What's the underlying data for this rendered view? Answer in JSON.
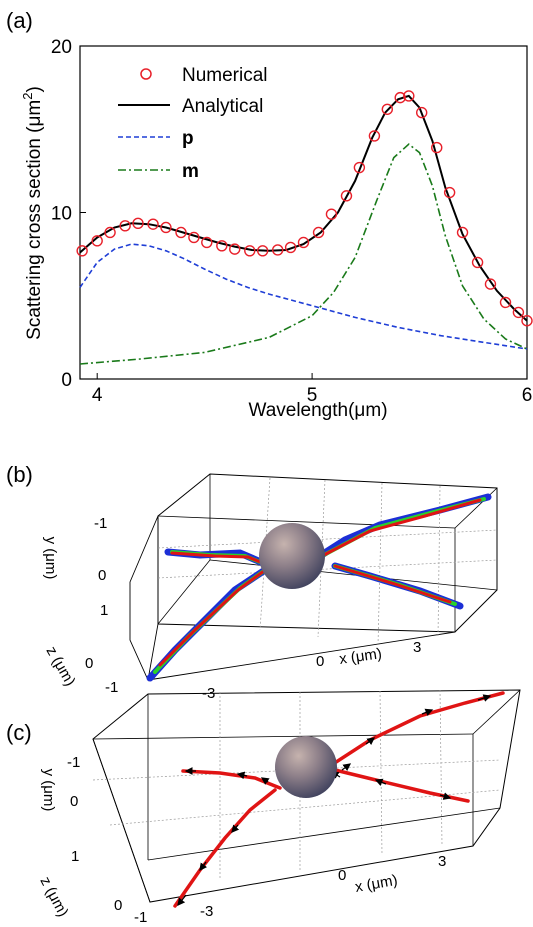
{
  "panels": {
    "a": "(a)",
    "b": "(b)",
    "c": "(c)"
  },
  "chart_data": [
    {
      "type": "line",
      "xlabel": "Wavelength(μm)",
      "ylabel_main": "Scattering cross section (μm",
      "ylabel_sup": "2",
      "ylabel_end": ")",
      "xlim": [
        3.92,
        6.0
      ],
      "ylim": [
        0,
        20
      ],
      "xticks": [
        4,
        5,
        6
      ],
      "yticks": [
        0,
        10,
        20
      ],
      "legend_position": "top-left",
      "series": [
        {
          "name": "Numerical",
          "style": "markers",
          "color": "#e8202a",
          "x": [
            3.93,
            4.0,
            4.06,
            4.13,
            4.19,
            4.26,
            4.32,
            4.39,
            4.45,
            4.51,
            4.58,
            4.64,
            4.71,
            4.77,
            4.84,
            4.9,
            4.96,
            5.03,
            5.09,
            5.16,
            5.22,
            5.29,
            5.35,
            5.41,
            5.45,
            5.51,
            5.58,
            5.64,
            5.7,
            5.77,
            5.83,
            5.9,
            5.96,
            6.0
          ],
          "y": [
            7.7,
            8.3,
            8.8,
            9.2,
            9.35,
            9.3,
            9.1,
            8.8,
            8.5,
            8.2,
            8.0,
            7.8,
            7.7,
            7.7,
            7.75,
            7.9,
            8.2,
            8.8,
            9.9,
            11.0,
            12.7,
            14.6,
            16.2,
            16.9,
            17.0,
            16.0,
            13.9,
            11.2,
            8.8,
            7.0,
            5.7,
            4.6,
            4.0,
            3.5
          ]
        },
        {
          "name": "Analytical",
          "style": "solid",
          "color": "#000000",
          "x": [
            3.92,
            4.0,
            4.08,
            4.16,
            4.24,
            4.32,
            4.4,
            4.48,
            4.56,
            4.64,
            4.72,
            4.8,
            4.88,
            4.96,
            5.04,
            5.12,
            5.2,
            5.28,
            5.34,
            5.4,
            5.45,
            5.5,
            5.56,
            5.62,
            5.7,
            5.78,
            5.86,
            5.94,
            6.0
          ],
          "y": [
            7.6,
            8.5,
            9.1,
            9.35,
            9.3,
            9.1,
            8.8,
            8.5,
            8.2,
            7.95,
            7.75,
            7.7,
            7.75,
            8.1,
            8.8,
            10.0,
            11.9,
            14.5,
            16.0,
            16.8,
            17.0,
            16.3,
            14.3,
            11.5,
            8.7,
            6.8,
            5.3,
            4.2,
            3.5
          ]
        },
        {
          "name": "p",
          "style": "dashed",
          "color": "#1f3ed6",
          "x": [
            3.92,
            4.0,
            4.08,
            4.16,
            4.24,
            4.32,
            4.4,
            4.5,
            4.6,
            4.7,
            4.8,
            4.9,
            5.0,
            5.2,
            5.4,
            5.6,
            5.8,
            6.0
          ],
          "y": [
            5.5,
            7.0,
            7.8,
            8.1,
            8.0,
            7.7,
            7.25,
            6.6,
            6.0,
            5.5,
            5.1,
            4.75,
            4.4,
            3.7,
            3.1,
            2.6,
            2.2,
            1.8
          ]
        },
        {
          "name": "m",
          "style": "dashdot",
          "color": "#1a7a1a",
          "x": [
            3.92,
            4.2,
            4.5,
            4.8,
            5.0,
            5.1,
            5.2,
            5.3,
            5.38,
            5.45,
            5.5,
            5.56,
            5.62,
            5.7,
            5.8,
            5.9,
            6.0
          ],
          "y": [
            0.9,
            1.2,
            1.6,
            2.5,
            3.8,
            5.2,
            7.3,
            10.7,
            13.3,
            14.1,
            13.6,
            11.6,
            8.6,
            5.6,
            3.6,
            2.4,
            1.8
          ]
        }
      ]
    },
    {
      "type": "scatter",
      "xlabel": "x (μm)",
      "ylabel": "y (μm)",
      "zlabel": "z (μm)",
      "xticks": [
        "-3",
        "0",
        "3"
      ],
      "yticks": [
        "-1",
        "0",
        "1"
      ],
      "zticks": [
        "0",
        "-1"
      ]
    },
    {
      "type": "scatter",
      "xlabel": "x (μm)",
      "ylabel": "y (μm)",
      "zlabel": "z (μm)",
      "xticks": [
        "-3",
        "0",
        "3"
      ],
      "yticks": [
        "-1",
        "0",
        "1"
      ],
      "zticks": [
        "0",
        "-1"
      ]
    }
  ]
}
